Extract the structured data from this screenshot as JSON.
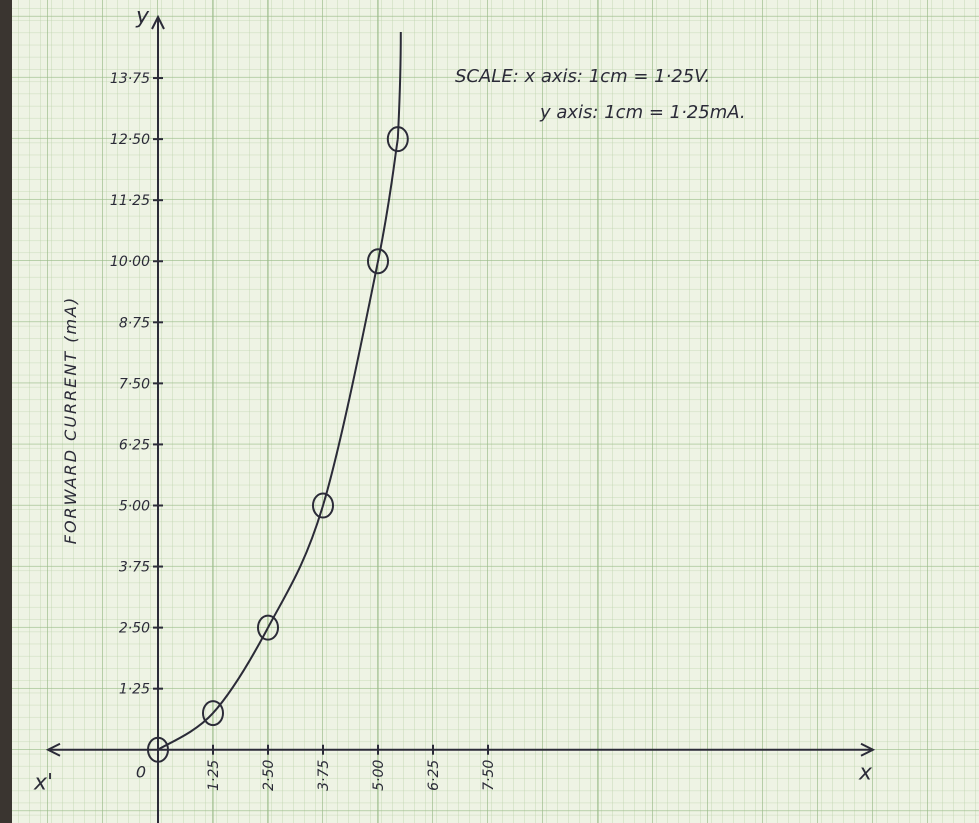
{
  "chart_data": {
    "type": "line",
    "ylabel": "FORWARD CURRENT (mA)",
    "y_axis_name": "y",
    "x_axis_name": "x",
    "x_axis_negative_name": "x'",
    "annotations": [
      "SCALE: x axis: 1cm = 1·25V.",
      "y axis: 1cm = 1·25mA."
    ],
    "x": [
      0,
      1.25,
      2.5,
      3.75,
      5,
      5.45
    ],
    "values": [
      0,
      0.75,
      2.5,
      5,
      10,
      12.5
    ],
    "color": "#2b2b38",
    "xlim": [
      -2.5,
      16.25
    ],
    "ylim": [
      -1.5,
      15
    ],
    "xticks": [
      0,
      {
        "value": 1.25,
        "label": "1·25"
      },
      {
        "value": 2.5,
        "label": "2·50"
      },
      {
        "value": 3.75,
        "label": "3·75"
      },
      {
        "value": 5,
        "label": "5·00"
      },
      {
        "value": 6.25,
        "label": "6·25"
      },
      {
        "value": 7.5,
        "label": "7·50"
      }
    ],
    "yticks": [
      {
        "value": 1.25,
        "label": "1·25"
      },
      {
        "value": 2.5,
        "label": "2·50"
      },
      {
        "value": 3.75,
        "label": "3·75"
      },
      {
        "value": 5,
        "label": "5·00"
      },
      {
        "value": 6.25,
        "label": "6·25"
      },
      {
        "value": 7.5,
        "label": "7·50"
      },
      {
        "value": 8.75,
        "label": "8·75"
      },
      {
        "value": 10,
        "label": "10·00"
      },
      {
        "value": 11.25,
        "label": "11·25"
      },
      {
        "value": 12.5,
        "label": "12·50"
      },
      {
        "value": 13.75,
        "label": "13·75"
      }
    ],
    "grid": true
  }
}
